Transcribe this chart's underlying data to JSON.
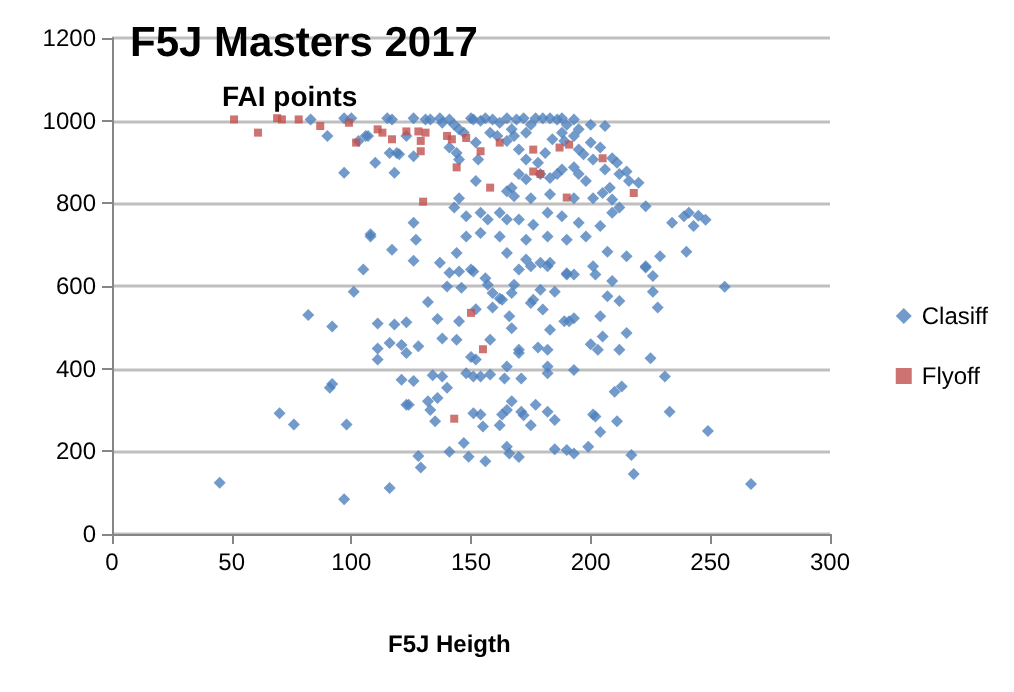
{
  "chart_data": {
    "type": "scatter",
    "title": "F5J Masters 2017",
    "ylabel": "FAI points",
    "xlabel": "F5J Heigth",
    "xlim": [
      0,
      300
    ],
    "xticks": [
      0,
      50,
      100,
      150,
      200,
      250,
      300
    ],
    "ylim": [
      0,
      1200
    ],
    "yticks": [
      0,
      200,
      400,
      600,
      800,
      1000,
      1200
    ],
    "grid": "y",
    "legend": "right",
    "series": [
      {
        "name": "Clasiff",
        "color": "#4f81bd",
        "marker": "diamond",
        "x": [
          105,
          126,
          141,
          145,
          150,
          151,
          156,
          157,
          159,
          162,
          167,
          168,
          170,
          175,
          182,
          183,
          190,
          193,
          202,
          209,
          223,
          226,
          101,
          82,
          92,
          111,
          118,
          123,
          132,
          136,
          146,
          140,
          145,
          152,
          159,
          163,
          166,
          167,
          175,
          176,
          180,
          179,
          185,
          183,
          189,
          191,
          193,
          204,
          207,
          212,
          215,
          226,
          228,
          111,
          116,
          121,
          123,
          128,
          111,
          138,
          144,
          158,
          150,
          152,
          170,
          170,
          178,
          182,
          182,
          193,
          200,
          203,
          205,
          212,
          225,
          91,
          92,
          121,
          126,
          134,
          138,
          140,
          148,
          151,
          154,
          158,
          164,
          165,
          171,
          182,
          231,
          210,
          213,
          98,
          123,
          124,
          132,
          133,
          136,
          135,
          151,
          154,
          155,
          162,
          163,
          165,
          167,
          171,
          172,
          175,
          177,
          182,
          185,
          201,
          202,
          204,
          211,
          233,
          147,
          141,
          128,
          129,
          149,
          156,
          165,
          166,
          170,
          185,
          190,
          193,
          199,
          217,
          218,
          97,
          116,
          70,
          76,
          45,
          83,
          90,
          97,
          100,
          97,
          108,
          110,
          107,
          115,
          117,
          116,
          119,
          118,
          120,
          123,
          126,
          126,
          126,
          103,
          106,
          131,
          133,
          137,
          138,
          141,
          143,
          145,
          147,
          144,
          141,
          145,
          145,
          143,
          150,
          151,
          154,
          156,
          159,
          162,
          165,
          167,
          169,
          172,
          175,
          177,
          180,
          183,
          186,
          188,
          190,
          193,
          195,
          200,
          206,
          152,
          158,
          161,
          165,
          168,
          173,
          170,
          173,
          178,
          181,
          184,
          188,
          189,
          193,
          195,
          197,
          200,
          201,
          204,
          206,
          209,
          211,
          212,
          215,
          216,
          220,
          223,
          208,
          209,
          201,
          205,
          198,
          195,
          193,
          188,
          186,
          183,
          179,
          173,
          170,
          167,
          165,
          168,
          175,
          183,
          193,
          153,
          152,
          154,
          148,
          157,
          162,
          165,
          170,
          176,
          182,
          188,
          195,
          204,
          212,
          209,
          234,
          239,
          241,
          243,
          240,
          229,
          223,
          215,
          207,
          198,
          190,
          182,
          173,
          162,
          154,
          148,
          144,
          137,
          127,
          117,
          108,
          165,
          173,
          179,
          190,
          201,
          249,
          267,
          256,
          245,
          248
        ],
        "values": [
          640,
          661,
          632,
          635,
          640,
          635,
          619,
          603,
          583,
          570,
          583,
          603,
          640,
          648,
          648,
          656,
          628,
          628,
          628,
          612,
          645,
          624,
          586,
          530,
          502,
          509,
          507,
          512,
          561,
          520,
          596,
          599,
          515,
          544,
          548,
          567,
          527,
          498,
          559,
          567,
          543,
          591,
          586,
          494,
          515,
          515,
          522,
          527,
          575,
          564,
          486,
          586,
          548,
          449,
          462,
          457,
          438,
          454,
          422,
          473,
          470,
          470,
          428,
          422,
          446,
          438,
          451,
          446,
          405,
          397,
          459,
          446,
          478,
          446,
          425,
          354,
          363,
          373,
          370,
          384,
          381,
          354,
          389,
          381,
          381,
          386,
          376,
          405,
          376,
          389,
          381,
          344,
          357,
          265,
          313,
          313,
          321,
          300,
          329,
          273,
          292,
          289,
          260,
          263,
          289,
          300,
          321,
          296,
          287,
          263,
          313,
          296,
          276,
          289,
          284,
          247,
          273,
          296,
          220,
          199,
          189,
          161,
          187,
          176,
          211,
          195,
          186,
          205,
          203,
          195,
          211,
          191,
          145,
          84,
          111,
          292,
          265,
          124,
          1003,
          963,
          1006,
          1006,
          874,
          725,
          898,
          963,
          1006,
          1003,
          922,
          922,
          874,
          919,
          963,
          1006,
          914,
          753,
          951,
          963,
          1003,
          1003,
          1006,
          995,
          1003,
          990,
          979,
          971,
          922,
          935,
          906,
          812,
          790,
          1006,
          1003,
          1000,
          1006,
          1003,
          995,
          1006,
          979,
          1003,
          1006,
          990,
          1006,
          1006,
          1006,
          1003,
          1006,
          990,
          1003,
          979,
          990,
          987,
          947,
          971,
          963,
          951,
          963,
          971,
          930,
          906,
          898,
          922,
          955,
          971,
          951,
          963,
          930,
          919,
          947,
          906,
          935,
          882,
          909,
          898,
          871,
          877,
          854,
          850,
          793,
          838,
          809,
          812,
          825,
          854,
          871,
          887,
          882,
          871,
          861,
          871,
          858,
          871,
          838,
          829,
          817,
          812,
          822,
          812,
          906,
          854,
          777,
          769,
          761,
          777,
          761,
          761,
          748,
          777,
          769,
          753,
          745,
          790,
          777,
          753,
          769,
          777,
          745,
          683,
          672,
          648,
          672,
          683,
          720,
          712,
          720,
          712,
          720,
          728,
          720,
          680,
          656,
          712,
          688,
          720,
          680,
          664,
          656,
          631,
          648,
          249,
          121,
          598,
          770,
          760
        ]
      },
      {
        "name": "Flyoff",
        "color": "#c0504d",
        "marker": "square",
        "x": [
          51,
          61,
          69,
          71,
          78,
          87,
          99,
          102,
          111,
          113,
          117,
          123,
          128,
          129,
          131,
          129,
          140,
          142,
          148,
          154,
          162,
          176,
          176,
          179,
          187,
          191,
          205,
          158,
          130,
          144,
          190,
          218,
          150,
          155,
          143
        ],
        "values": [
          1003,
          971,
          1006,
          1003,
          1003,
          987,
          995,
          947,
          979,
          971,
          955,
          974,
          974,
          951,
          971,
          926,
          963,
          955,
          958,
          926,
          947,
          930,
          877,
          871,
          935,
          942,
          909,
          838,
          804,
          887,
          814,
          825,
          535,
          447,
          279
        ]
      }
    ]
  }
}
